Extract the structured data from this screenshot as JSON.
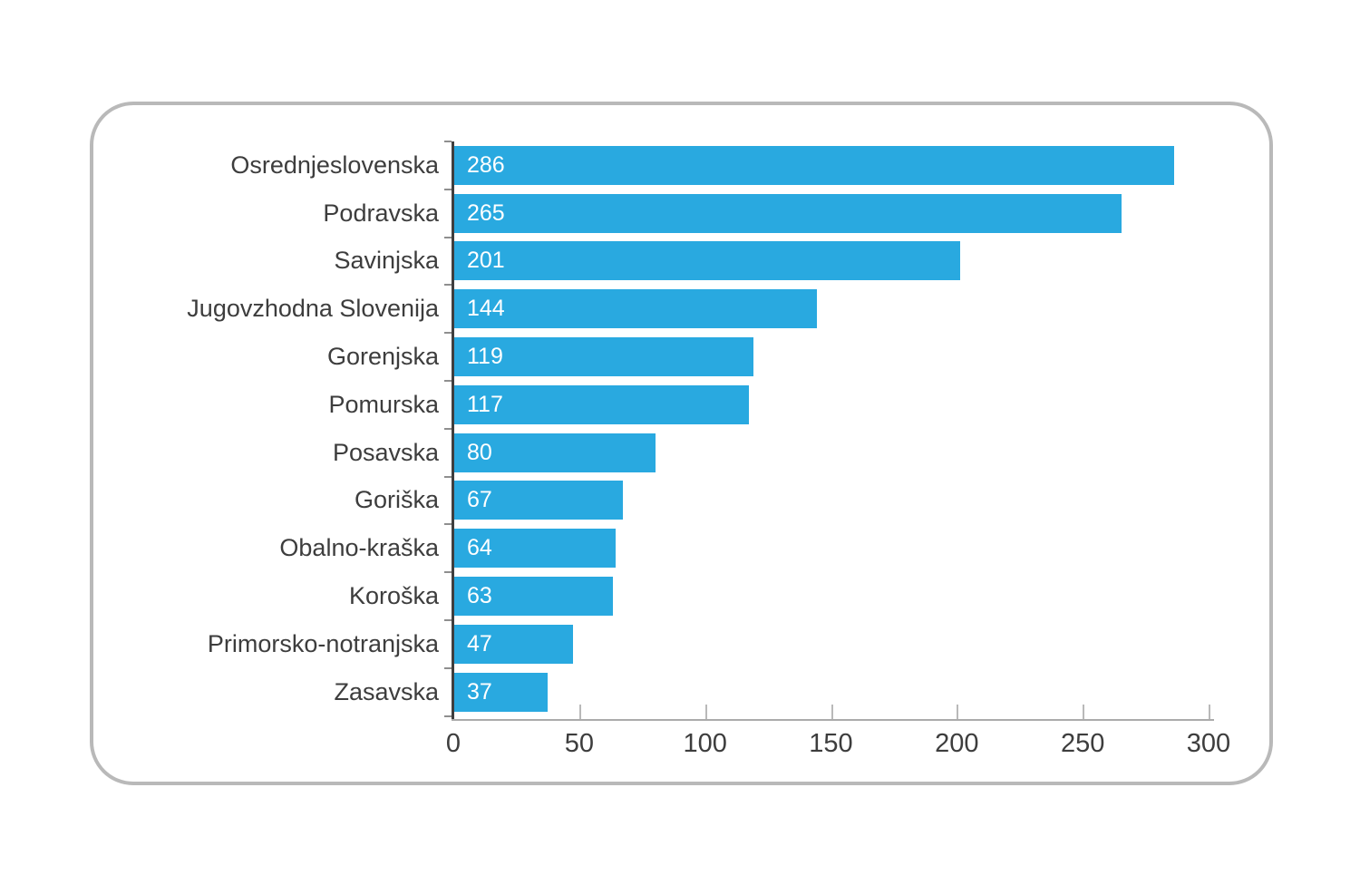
{
  "chart_data": {
    "type": "bar",
    "orientation": "horizontal",
    "categories": [
      "Osrednjeslovenska",
      "Podravska",
      "Savinjska",
      "Jugovzhodna Slovenija",
      "Gorenjska",
      "Pomurska",
      "Posavska",
      "Goriška",
      "Obalno-kraška",
      "Koroška",
      "Primorsko-notranjska",
      "Zasavska"
    ],
    "values": [
      286,
      265,
      201,
      144,
      119,
      117,
      80,
      67,
      64,
      63,
      47,
      37
    ],
    "value_labels": [
      "286",
      "265",
      "201",
      "144",
      "119",
      "117",
      "80",
      "67",
      "64",
      "63",
      "47",
      "37"
    ],
    "title": "",
    "xlabel": "",
    "ylabel": "",
    "xlim": [
      0,
      300
    ],
    "x_ticks": [
      0,
      50,
      100,
      150,
      200,
      250,
      300
    ],
    "x_tick_labels": [
      "0",
      "50",
      "100",
      "150",
      "200",
      "250",
      "300"
    ],
    "grid": false,
    "legend": false,
    "bar_color": "#29a9e0",
    "value_label_color": "#ffffff",
    "text_color": "#3d3d3d",
    "y_axis_color": "#3f3f3f",
    "x_axis_color": "#ababab",
    "frame_border_color": "#b9b9b9"
  }
}
